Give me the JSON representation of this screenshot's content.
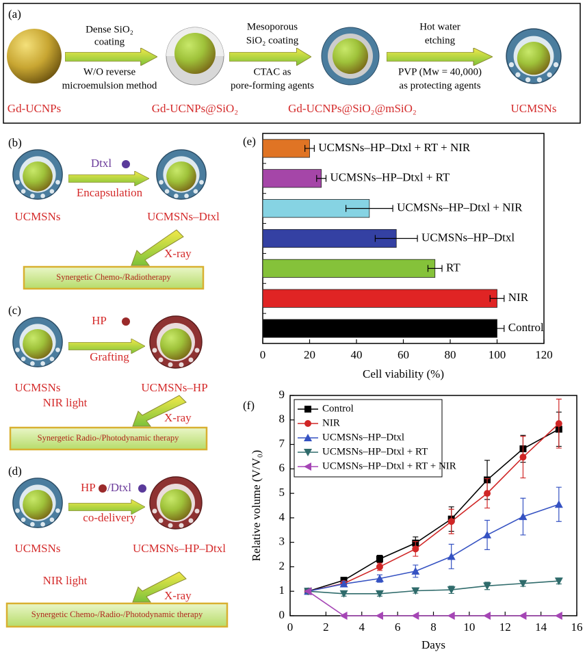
{
  "diagram": {
    "a": {
      "label": "(a)",
      "steps": [
        {
          "top": [
            "Dense SiO₂",
            "coating"
          ],
          "bottom": [
            "W/O reverse",
            "microemulsion method"
          ]
        },
        {
          "top": [
            "Mesoporous",
            "SiO₂ coating"
          ],
          "bottom": [
            "CTAC as",
            "pore-forming agents"
          ]
        },
        {
          "top": [
            "Hot water",
            "etching"
          ],
          "bottom": [
            "PVP (Mw = 40,000)",
            "as protecting agents"
          ]
        }
      ],
      "products": [
        "Gd-UCNPs",
        "Gd-UCNPs@SiO₂",
        "Gd-UCNPs@SiO₂@mSiO₂",
        "UCMSNs"
      ]
    },
    "b": {
      "label": "(b)",
      "reagent": "Dtxl",
      "arrow_text": "Encapsulation",
      "start": "UCMSNs",
      "product": "UCMSNs–Dtxl",
      "triggers": [
        "X-ray"
      ],
      "result": "Synergetic Chemo-/Radiotherapy"
    },
    "c": {
      "label": "(c)",
      "reagent": "HP",
      "arrow_text": "Grafting",
      "start": "UCMSNs",
      "product": "UCMSNs–HP",
      "triggers": [
        "NIR light",
        "X-ray"
      ],
      "result": "Synergetic Radio-/Photodynamic therapy"
    },
    "d": {
      "label": "(d)",
      "reagent": "HP",
      "reagent2": "/Dtxl",
      "arrow_text": "co-delivery",
      "start": "UCMSNs",
      "product": "UCMSNs–HP–Dtxl",
      "triggers": [
        "NIR light",
        "X-ray"
      ],
      "result": "Synergetic Chemo-/Radio-/Photodynamic therapy"
    }
  },
  "chart_data": [
    {
      "type": "bar",
      "orientation": "horizontal",
      "label": "(e)",
      "x_label": "Cell viability (%)",
      "categories": [
        "UCMSNs–HP–Dtxl + RT + NIR",
        "UCMSNs–HP–Dtxl + RT",
        "UCMSNs–HP–Dtxl + NIR",
        "UCMSNs–HP–Dtxl",
        "RT",
        "NIR",
        "Control"
      ],
      "values": [
        20,
        25,
        45.5,
        57,
        73.5,
        100,
        100
      ],
      "errors": [
        2,
        2,
        10,
        9,
        3,
        3,
        3
      ],
      "colors": [
        "#e07424",
        "#a546a8",
        "#86d3e3",
        "#3441a3",
        "#85c23a",
        "#e02424",
        "#000000"
      ],
      "xlim": [
        0,
        120
      ],
      "xticks": [
        0,
        20,
        40,
        60,
        80,
        100,
        120
      ]
    },
    {
      "type": "line",
      "label": "(f)",
      "x_label": "Days",
      "y_label": "Relative volume (V/V₀)",
      "x": [
        1,
        3,
        5,
        7,
        9,
        11,
        13,
        15
      ],
      "series": [
        {
          "name": "Control",
          "color": "#000000",
          "marker": "square",
          "values": [
            1,
            1.45,
            2.32,
            2.97,
            3.95,
            5.55,
            6.82,
            7.62
          ],
          "errors": [
            0.05,
            0.08,
            0.15,
            0.25,
            0.5,
            0.8,
            0.55,
            0.7
          ]
        },
        {
          "name": "NIR",
          "color": "#d02626",
          "marker": "circle",
          "values": [
            1,
            1.32,
            2.0,
            2.73,
            3.85,
            5.0,
            6.48,
            7.85
          ],
          "errors": [
            0.05,
            0.1,
            0.15,
            0.3,
            0.5,
            0.6,
            0.85,
            1.0
          ]
        },
        {
          "name": "UCMSNs–HP–Dtxl",
          "color": "#3552c2",
          "marker": "triangle-up",
          "values": [
            1,
            1.3,
            1.52,
            1.82,
            2.42,
            3.3,
            4.05,
            4.55
          ],
          "errors": [
            0.05,
            0.1,
            0.15,
            0.25,
            0.5,
            0.6,
            0.75,
            0.7
          ]
        },
        {
          "name": "UCMSNs–HP–Dtxl + RT",
          "color": "#2f6b6b",
          "marker": "triangle-down",
          "values": [
            1,
            0.9,
            0.9,
            1.02,
            1.06,
            1.22,
            1.32,
            1.42
          ],
          "errors": [
            0.05,
            0.1,
            0.1,
            0.1,
            0.15,
            0.15,
            0.12,
            0.12
          ]
        },
        {
          "name": "UCMSNs–HP–Dtxl + RT + NIR",
          "color": "#a545b5",
          "marker": "triangle-left",
          "values": [
            1,
            0,
            0,
            0,
            0,
            0,
            0,
            0
          ]
        }
      ],
      "xlim": [
        0,
        16
      ],
      "xticks": [
        0,
        2,
        4,
        6,
        8,
        10,
        12,
        14,
        16
      ],
      "ylim": [
        0,
        9
      ],
      "yticks": [
        0,
        1,
        2,
        3,
        4,
        5,
        6,
        7,
        8,
        9
      ],
      "legend": "upper left"
    }
  ]
}
